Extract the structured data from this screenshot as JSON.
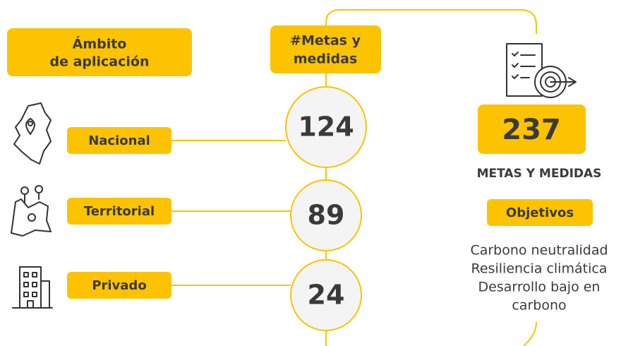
{
  "header": {
    "scope": [
      "Ámbito",
      "de aplicación"
    ],
    "goals": [
      "#Metas y",
      "medidas"
    ]
  },
  "rows": [
    {
      "label": "Nacional",
      "value": 124
    },
    {
      "label": "Territorial",
      "value": 89
    },
    {
      "label": "Privado",
      "value": 24
    }
  ],
  "total": {
    "value": 237,
    "label": "METAS Y MEDIDAS"
  },
  "objectives": {
    "title": "Objetivos",
    "items": [
      "Carbono neutralidad",
      "Resiliencia climática",
      "Desarrollo bajo en",
      "carbono"
    ]
  }
}
